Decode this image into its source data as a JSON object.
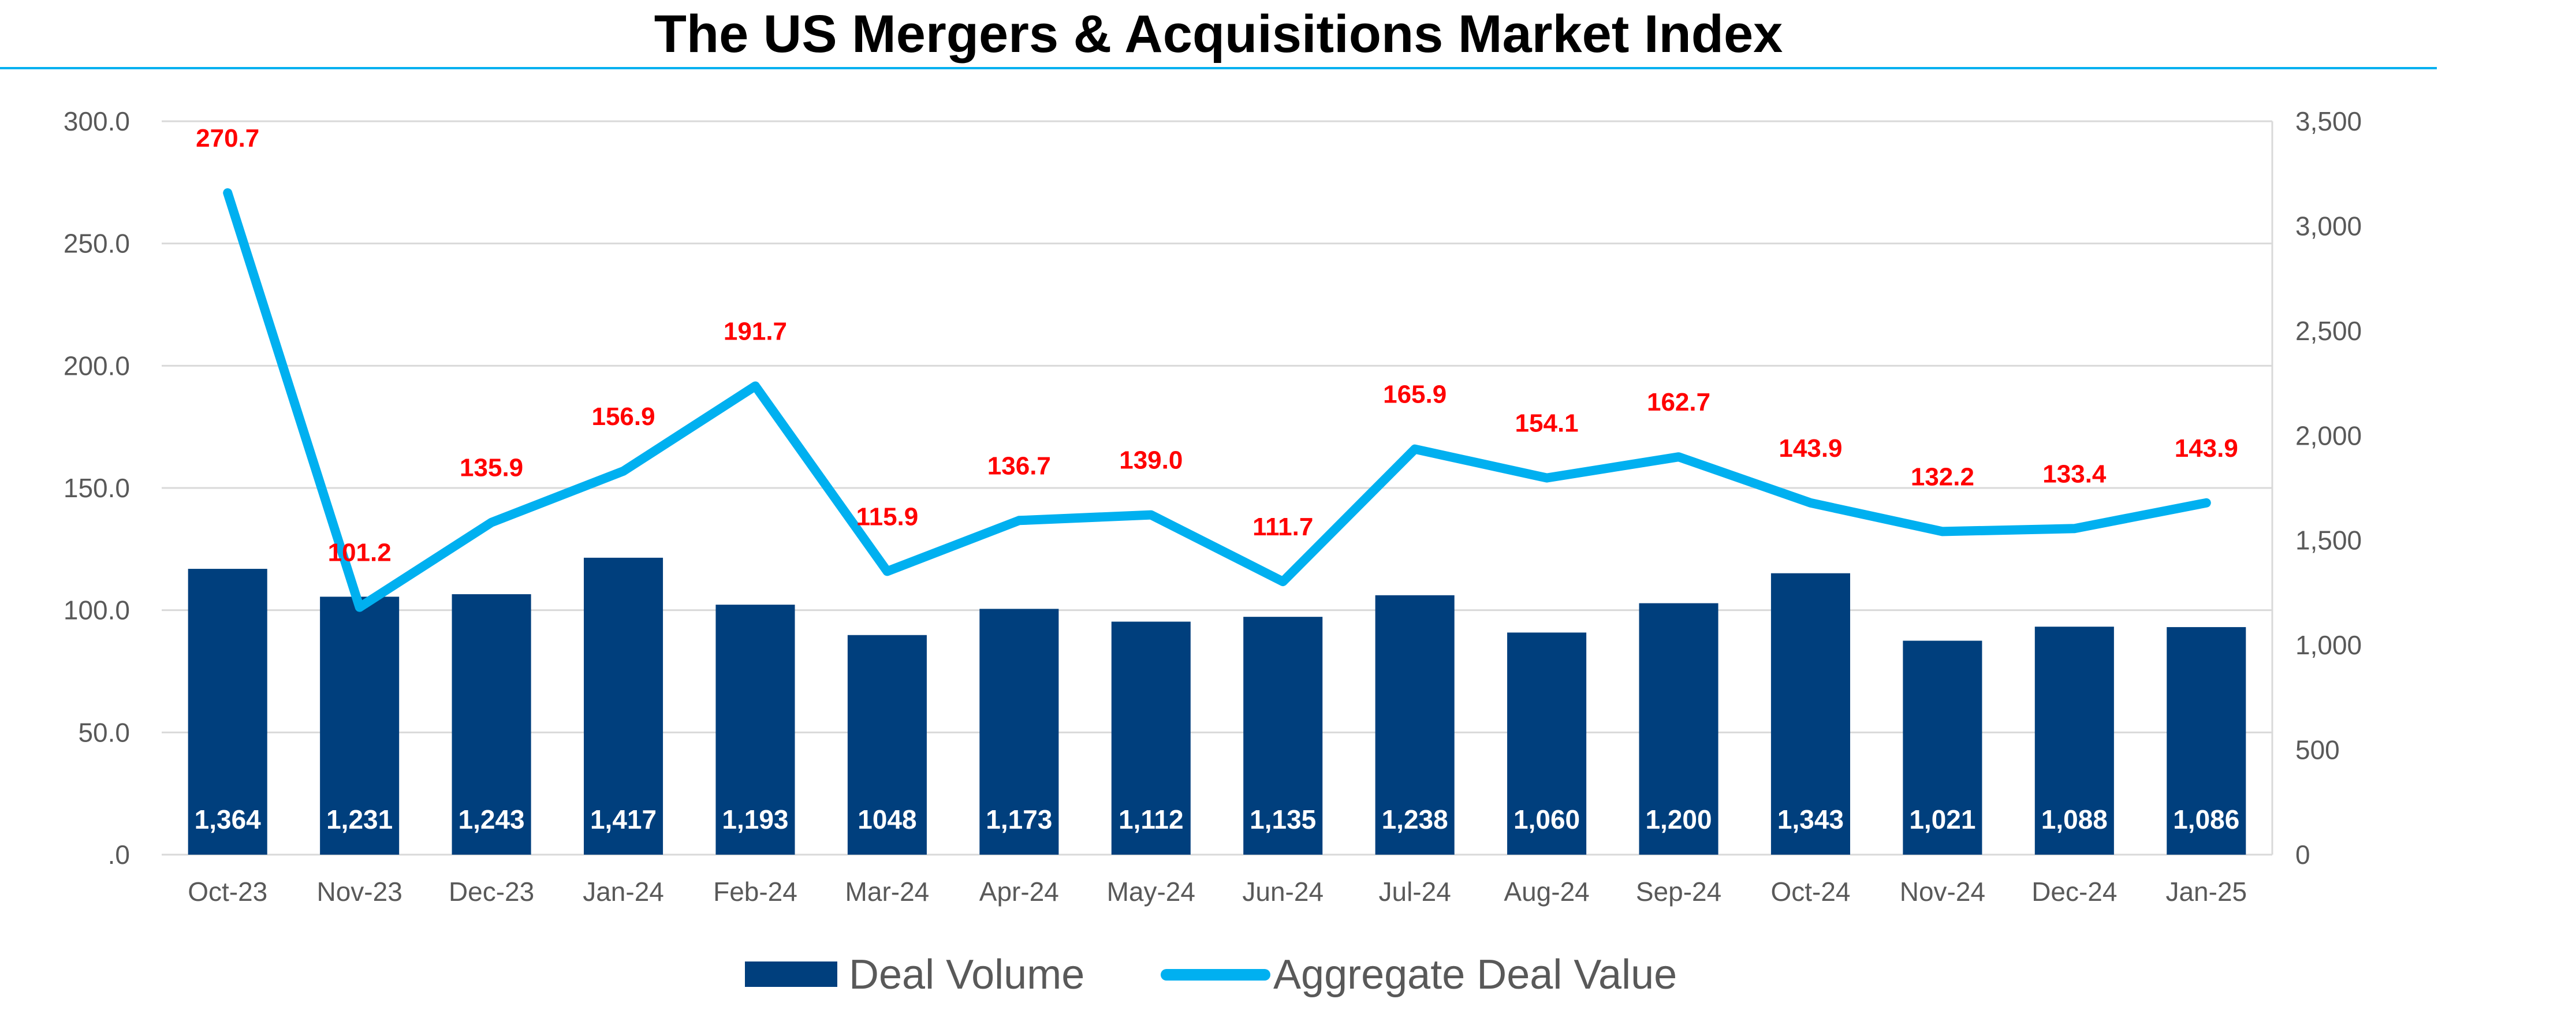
{
  "chart_data": {
    "type": "bar",
    "title": "The US Mergers & Acquisitions Market Index",
    "categories": [
      "Oct-23",
      "Nov-23",
      "Dec-23",
      "Jan-24",
      "Feb-24",
      "Mar-24",
      "Apr-24",
      "May-24",
      "Jun-24",
      "Jul-24",
      "Aug-24",
      "Sep-24",
      "Oct-24",
      "Nov-24",
      "Dec-24",
      "Jan-25"
    ],
    "series": [
      {
        "name": "Deal Volume",
        "type": "bar",
        "axis": "right",
        "values": [
          1364,
          1231,
          1243,
          1417,
          1193,
          1048,
          1173,
          1112,
          1135,
          1238,
          1060,
          1200,
          1343,
          1021,
          1088,
          1086
        ],
        "labels": [
          "1,364",
          "1,231",
          "1,243",
          "1,417",
          "1,193",
          "1048",
          "1,173",
          "1,112",
          "1,135",
          "1,238",
          "1,060",
          "1,200",
          "1,343",
          "1,021",
          "1,088",
          "1,086"
        ],
        "color": "#003f7d"
      },
      {
        "name": "Aggregate Deal Value",
        "type": "line",
        "axis": "left",
        "values": [
          270.7,
          101.2,
          135.9,
          156.9,
          191.7,
          115.9,
          136.7,
          139.0,
          111.7,
          165.9,
          154.1,
          162.7,
          143.9,
          132.2,
          133.4,
          143.9
        ],
        "labels": [
          "270.7",
          "101.2",
          "135.9",
          "156.9",
          "191.7",
          "115.9",
          "136.7",
          "139.0",
          "111.7",
          "165.9",
          "154.1",
          "162.7",
          "143.9",
          "132.2",
          "133.4",
          "143.9"
        ],
        "color": "#00b0f0"
      }
    ],
    "left_axis": {
      "ylim": [
        0,
        300
      ],
      "ticks": [
        0,
        50,
        100,
        150,
        200,
        250,
        300
      ],
      "tick_labels": [
        ".0",
        "50.0",
        "100.0",
        "150.0",
        "200.0",
        "250.0",
        "300.0"
      ]
    },
    "right_axis": {
      "ylim": [
        0,
        3500
      ],
      "ticks": [
        0,
        500,
        1000,
        1500,
        2000,
        2500,
        3000,
        3500
      ],
      "tick_labels": [
        "0",
        "500",
        "1,000",
        "1,500",
        "2,000",
        "2,500",
        "3,000",
        "3,500"
      ]
    },
    "grid": true,
    "legend": "bottom",
    "colors": {
      "label_red": "#ff0000",
      "title_rule": "#00b0f0",
      "grid": "#d9d9d9"
    }
  }
}
